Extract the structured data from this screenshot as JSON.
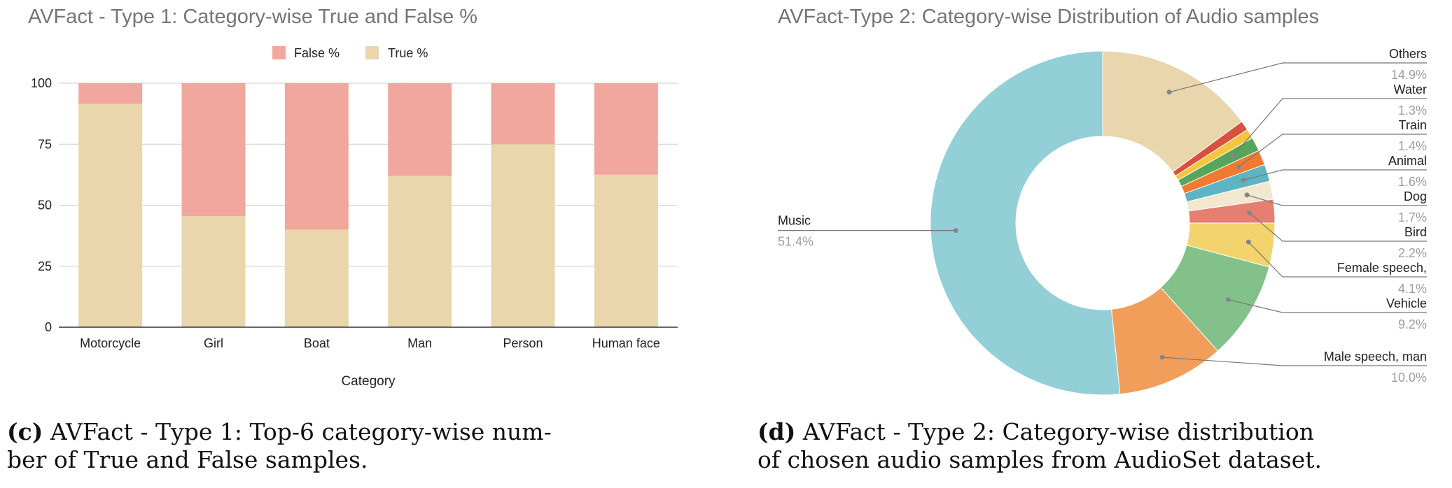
{
  "chart_data": [
    {
      "type": "bar",
      "stacked": true,
      "title": "AVFact - Type 1: Category-wise True and False %",
      "xlabel": "Category",
      "ylabel": "",
      "ylim": [
        0,
        100
      ],
      "yticks": [
        0,
        25,
        50,
        75,
        100
      ],
      "categories": [
        "Motorcycle",
        "Girl",
        "Boat",
        "Man",
        "Person",
        "Human face"
      ],
      "series": [
        {
          "name": "True %",
          "color": "#E9D6AC",
          "values": [
            91.5,
            45.5,
            40,
            62,
            75,
            62.5
          ]
        },
        {
          "name": "False %",
          "color": "#F1A79E",
          "values": [
            8.5,
            54.5,
            60,
            38,
            25,
            37.5
          ]
        }
      ],
      "legend_order": [
        "False %",
        "True %"
      ],
      "legend_position": "top",
      "grid": true
    },
    {
      "type": "pie",
      "donut": true,
      "title": "AVFact-Type 2: Category-wise Distribution of Audio samples",
      "slices": [
        {
          "label": "Others",
          "pct_label": "14.9%",
          "value": 14.9,
          "color": "#E9D6AC"
        },
        {
          "label": "",
          "pct_label": "",
          "value": 0.9,
          "color": "#D9503F"
        },
        {
          "label": "",
          "pct_label": "",
          "value": 0.9,
          "color": "#F4C53D"
        },
        {
          "label": "Water",
          "pct_label": "1.3%",
          "value": 1.3,
          "color": "#57A55A"
        },
        {
          "label": "Train",
          "pct_label": "1.4%",
          "value": 1.4,
          "color": "#EF7A30"
        },
        {
          "label": "Animal",
          "pct_label": "1.6%",
          "value": 1.6,
          "color": "#5DB4C2"
        },
        {
          "label": "Dog",
          "pct_label": "1.7%",
          "value": 1.7,
          "color": "#F2E7CF"
        },
        {
          "label": "Bird",
          "pct_label": "2.2%",
          "value": 2.2,
          "color": "#E47F72"
        },
        {
          "label": "Female speech,",
          "pct_label": "4.1%",
          "value": 4.1,
          "color": "#F3D46C"
        },
        {
          "label": "Vehicle",
          "pct_label": "9.2%",
          "value": 9.2,
          "color": "#83C18A"
        },
        {
          "label": "Male speech, man",
          "pct_label": "10.0%",
          "value": 10.0,
          "color": "#F19E5B"
        },
        {
          "label": "Music",
          "pct_label": "51.4%",
          "value": 51.4,
          "color": "#92CFD6"
        }
      ]
    }
  ],
  "captions": {
    "left_tag": "(c)",
    "left_line1": "AVFact - Type 1: Top-6 category-wise num-",
    "left_line2": "ber of True and False samples.",
    "right_tag": "(d)",
    "right_line1": "AVFact - Type 2: Category-wise distribution",
    "right_line2": "of chosen audio samples from AudioSet dataset."
  }
}
